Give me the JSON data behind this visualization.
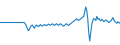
{
  "values": [
    0.0,
    0.0,
    0.0,
    0.0,
    0.0,
    0.0,
    0.0,
    0.0,
    0.0,
    0.0,
    0.0,
    0.0,
    0.0,
    0.0,
    0.0,
    0.0,
    0.0,
    0.0,
    0.0,
    0.0,
    0.0,
    0.0,
    0.0,
    0.0,
    0.0,
    -0.03,
    -0.08,
    -0.14,
    -0.2,
    -0.18,
    -0.12,
    -0.08,
    -0.06,
    -0.1,
    -0.14,
    -0.1,
    -0.06,
    -0.08,
    -0.1,
    -0.08,
    -0.05,
    -0.07,
    -0.09,
    -0.07,
    -0.05,
    -0.06,
    -0.08,
    -0.06,
    -0.04,
    -0.05,
    -0.07,
    -0.05,
    -0.03,
    -0.05,
    -0.07,
    -0.05,
    -0.03,
    -0.05,
    -0.07,
    -0.05,
    -0.03,
    -0.05,
    -0.07,
    -0.09,
    -0.07,
    -0.05,
    -0.03,
    -0.05,
    -0.07,
    -0.05,
    -0.03,
    -0.01,
    0.01,
    0.03,
    0.05,
    0.07,
    0.09,
    0.07,
    0.05,
    0.07,
    0.09,
    0.11,
    0.13,
    0.15,
    0.25,
    0.38,
    0.3,
    0.1,
    -0.25,
    -0.45,
    -0.25,
    -0.05,
    0.05,
    0.1,
    0.08,
    0.05,
    0.15,
    0.08,
    0.1,
    0.06,
    0.04,
    0.08,
    0.05,
    0.02,
    0.04,
    0.06,
    0.04,
    0.02,
    0.0,
    0.02,
    0.04,
    0.08,
    0.12,
    0.06,
    0.02,
    0.0,
    -0.02,
    0.02,
    0.0,
    -0.02
  ],
  "line_color": "#1b7fc4",
  "line_width": 0.8,
  "background_color": "#ffffff",
  "ylim": [
    -0.55,
    0.55
  ]
}
